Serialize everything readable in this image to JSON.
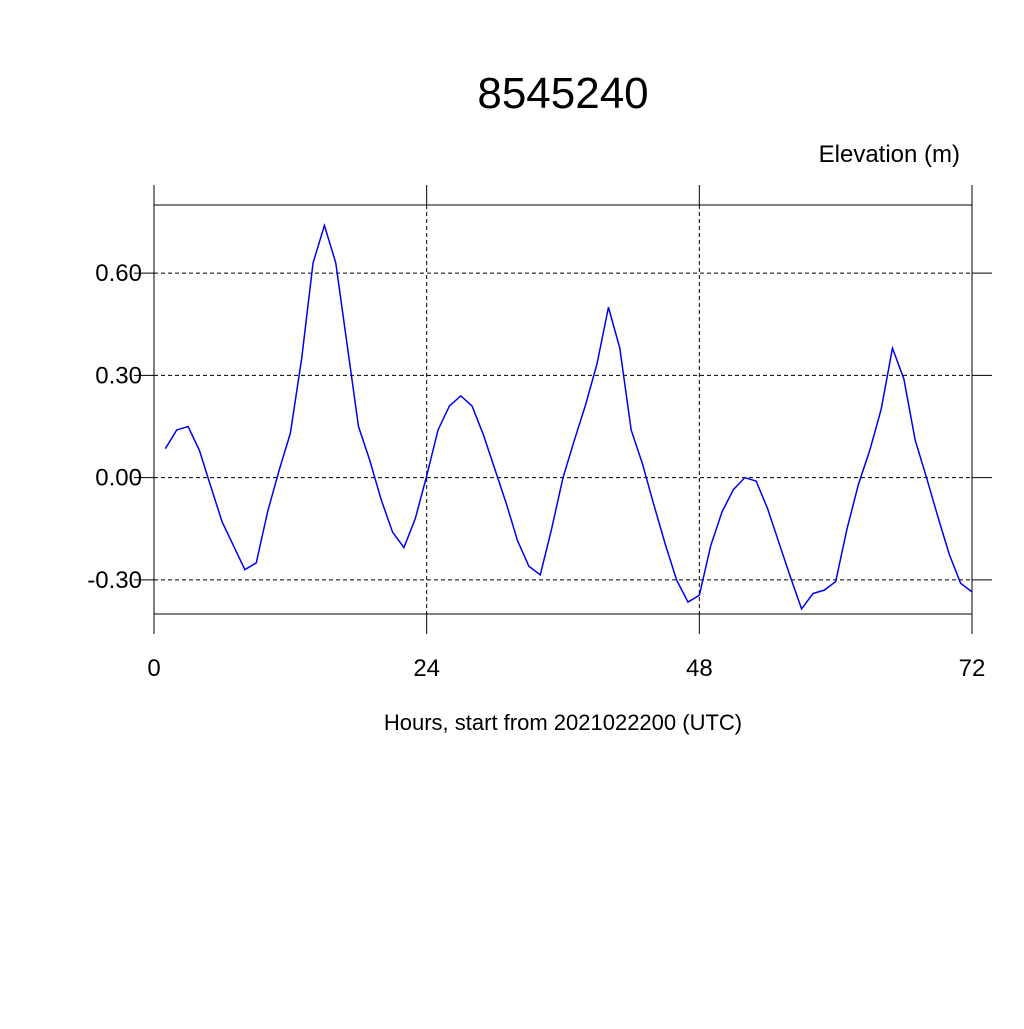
{
  "chart_data": {
    "type": "line",
    "title": "8545240",
    "y_label": "Elevation (m)",
    "x_label": "Hours, start from 2021022200 (UTC)",
    "x": [
      1,
      2,
      3,
      4,
      5,
      6,
      7,
      8,
      9,
      10,
      11,
      12,
      13,
      14,
      15,
      16,
      17,
      18,
      19,
      20,
      21,
      22,
      23,
      24,
      25,
      26,
      27,
      28,
      29,
      30,
      31,
      32,
      33,
      34,
      35,
      36,
      37,
      38,
      39,
      40,
      41,
      42,
      43,
      44,
      45,
      46,
      47,
      48,
      49,
      50,
      51,
      52,
      53,
      54,
      55,
      56,
      57,
      58,
      59,
      60,
      61,
      62,
      63,
      64,
      65,
      66,
      67,
      68,
      69,
      70,
      71,
      72
    ],
    "series": [
      {
        "color": "#0000ee",
        "values": [
          0.085,
          0.14,
          0.15,
          0.08,
          -0.026,
          -0.13,
          -0.2,
          -0.27,
          -0.25,
          -0.1,
          0.02,
          0.13,
          0.35,
          0.63,
          0.74,
          0.63,
          0.39,
          0.15,
          0.05,
          -0.065,
          -0.16,
          -0.205,
          -0.12,
          0.005,
          0.14,
          0.21,
          0.24,
          0.21,
          0.125,
          0.025,
          -0.075,
          -0.185,
          -0.26,
          -0.285,
          -0.15,
          0.0,
          0.11,
          0.215,
          0.335,
          0.5,
          0.38,
          0.14,
          0.04,
          -0.08,
          -0.195,
          -0.3,
          -0.365,
          -0.345,
          -0.2,
          -0.1,
          -0.035,
          0.0,
          -0.01,
          -0.09,
          -0.19,
          -0.29,
          -0.385,
          -0.34,
          -0.33,
          -0.305,
          -0.15,
          -0.02,
          0.08,
          0.2,
          0.38,
          0.29,
          0.11,
          0.0,
          -0.115,
          -0.225,
          -0.31,
          -0.335
        ]
      }
    ],
    "xlim": [
      0,
      72
    ],
    "xticks": [
      0,
      24,
      48,
      72
    ],
    "ylim": [
      -0.4,
      0.8
    ],
    "yticks": [
      {
        "value": -0.3,
        "label": "-0.30"
      },
      {
        "value": 0,
        "label": "0.00"
      },
      {
        "value": 0.3,
        "label": "0.30"
      },
      {
        "value": 0.6,
        "label": "0.60"
      }
    ],
    "grid": true
  }
}
